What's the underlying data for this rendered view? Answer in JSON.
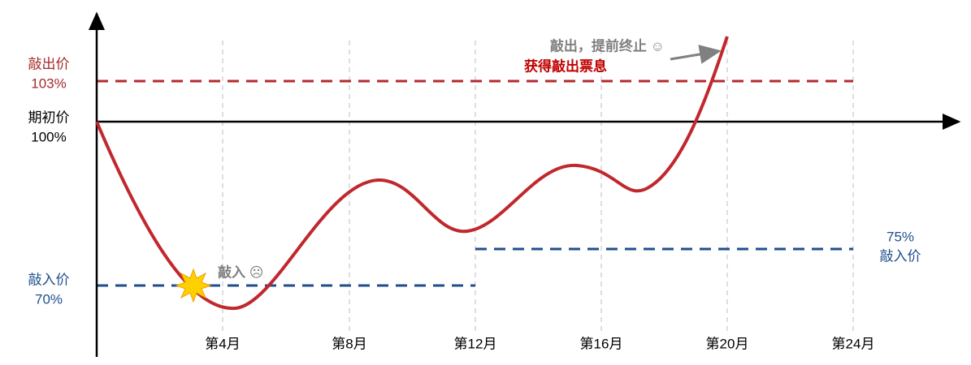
{
  "levels": {
    "knock_out": {
      "label": "敲出价",
      "value": "103%"
    },
    "initial": {
      "label": "期初价",
      "value": "100%"
    },
    "knock_in": {
      "label": "敲入价",
      "value": "70%"
    },
    "knock_in_later": {
      "value": "75%",
      "label": "敲入价"
    }
  },
  "annotations": {
    "knock_out_line1": "敲出，提前终止 ☺",
    "knock_out_line2": "获得敲出票息",
    "knock_in": "敲入 ☹"
  },
  "months": [
    "第4月",
    "第8月",
    "第12月",
    "第16月",
    "第20月",
    "第24月"
  ]
}
